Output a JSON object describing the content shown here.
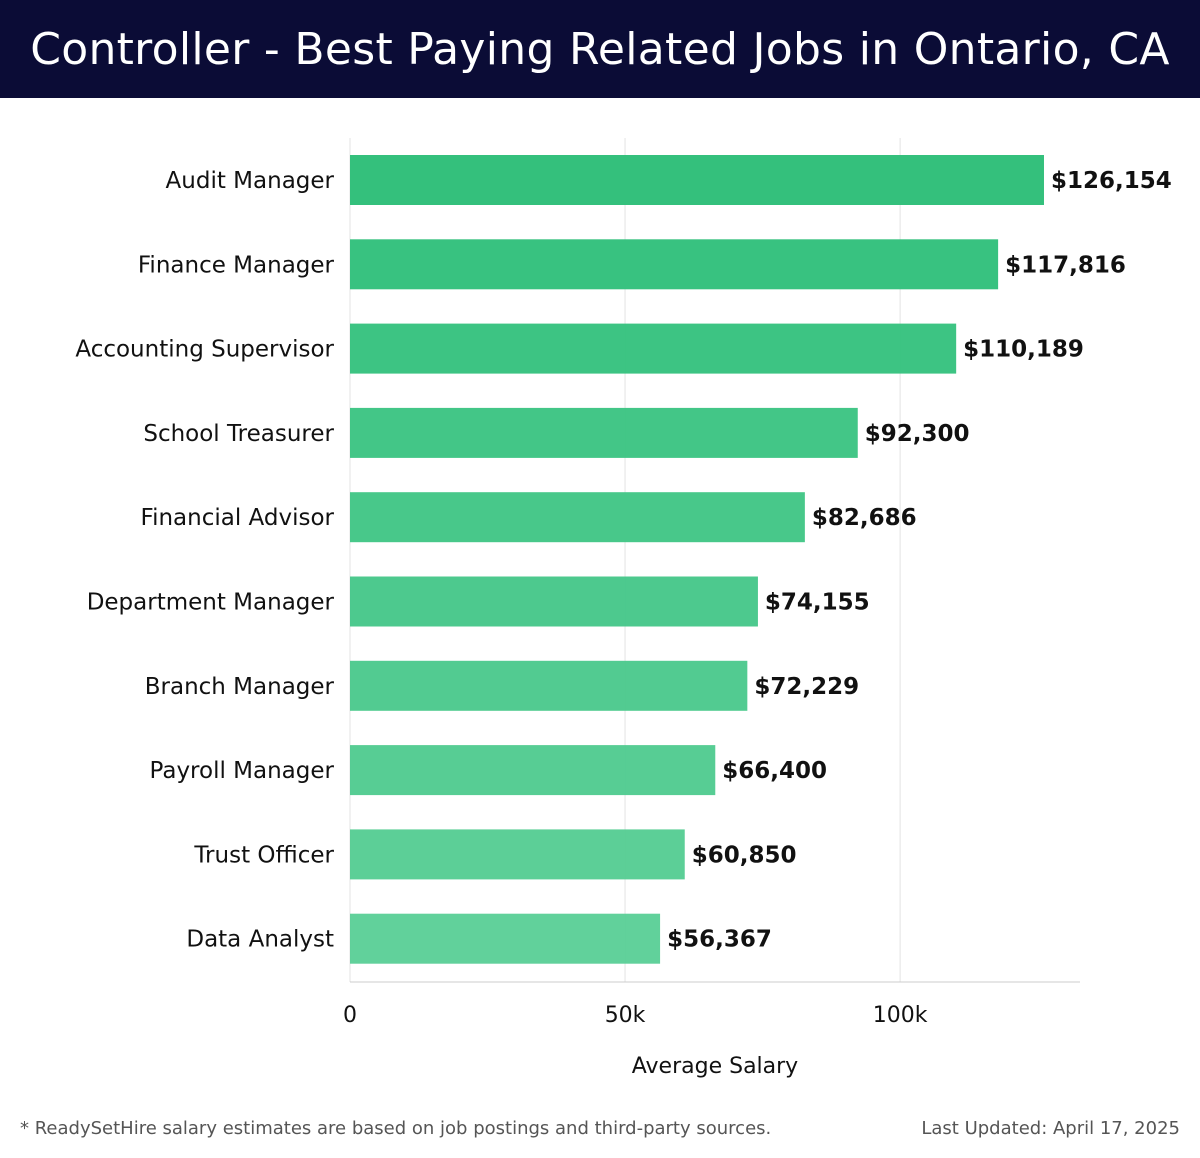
{
  "header": {
    "title": "Controller - Best Paying Related Jobs in Ontario, CA"
  },
  "colors": {
    "header_bg": "#0b0c36",
    "bar_top": "#2dbe78",
    "bar_bottom": "#5ccf98",
    "grid": "#e3e3e3",
    "axis": "#cccccc"
  },
  "chart_data": {
    "type": "bar",
    "orientation": "horizontal",
    "categories": [
      "Audit Manager",
      "Finance Manager",
      "Accounting Supervisor",
      "School Treasurer",
      "Financial Advisor",
      "Department Manager",
      "Branch Manager",
      "Payroll Manager",
      "Trust Officer",
      "Data Analyst"
    ],
    "values": [
      126154,
      117816,
      110189,
      92300,
      82686,
      74155,
      72229,
      66400,
      60850,
      56367
    ],
    "value_labels": [
      "$126,154",
      "$117,816",
      "$110,189",
      "$92,300",
      "$82,686",
      "$74,155",
      "$72,229",
      "$66,400",
      "$60,850",
      "$56,367"
    ],
    "xlabel": "Average Salary",
    "ylabel": "",
    "xlim": [
      0,
      132700
    ],
    "xticks": [
      0,
      50000,
      100000
    ],
    "xtick_labels": [
      "0",
      "50k",
      "100k"
    ],
    "grid": true
  },
  "footer": {
    "note": "* ReadySetHire salary estimates are based on job postings and third-party sources.",
    "updated": "Last Updated: April 17, 2025"
  }
}
